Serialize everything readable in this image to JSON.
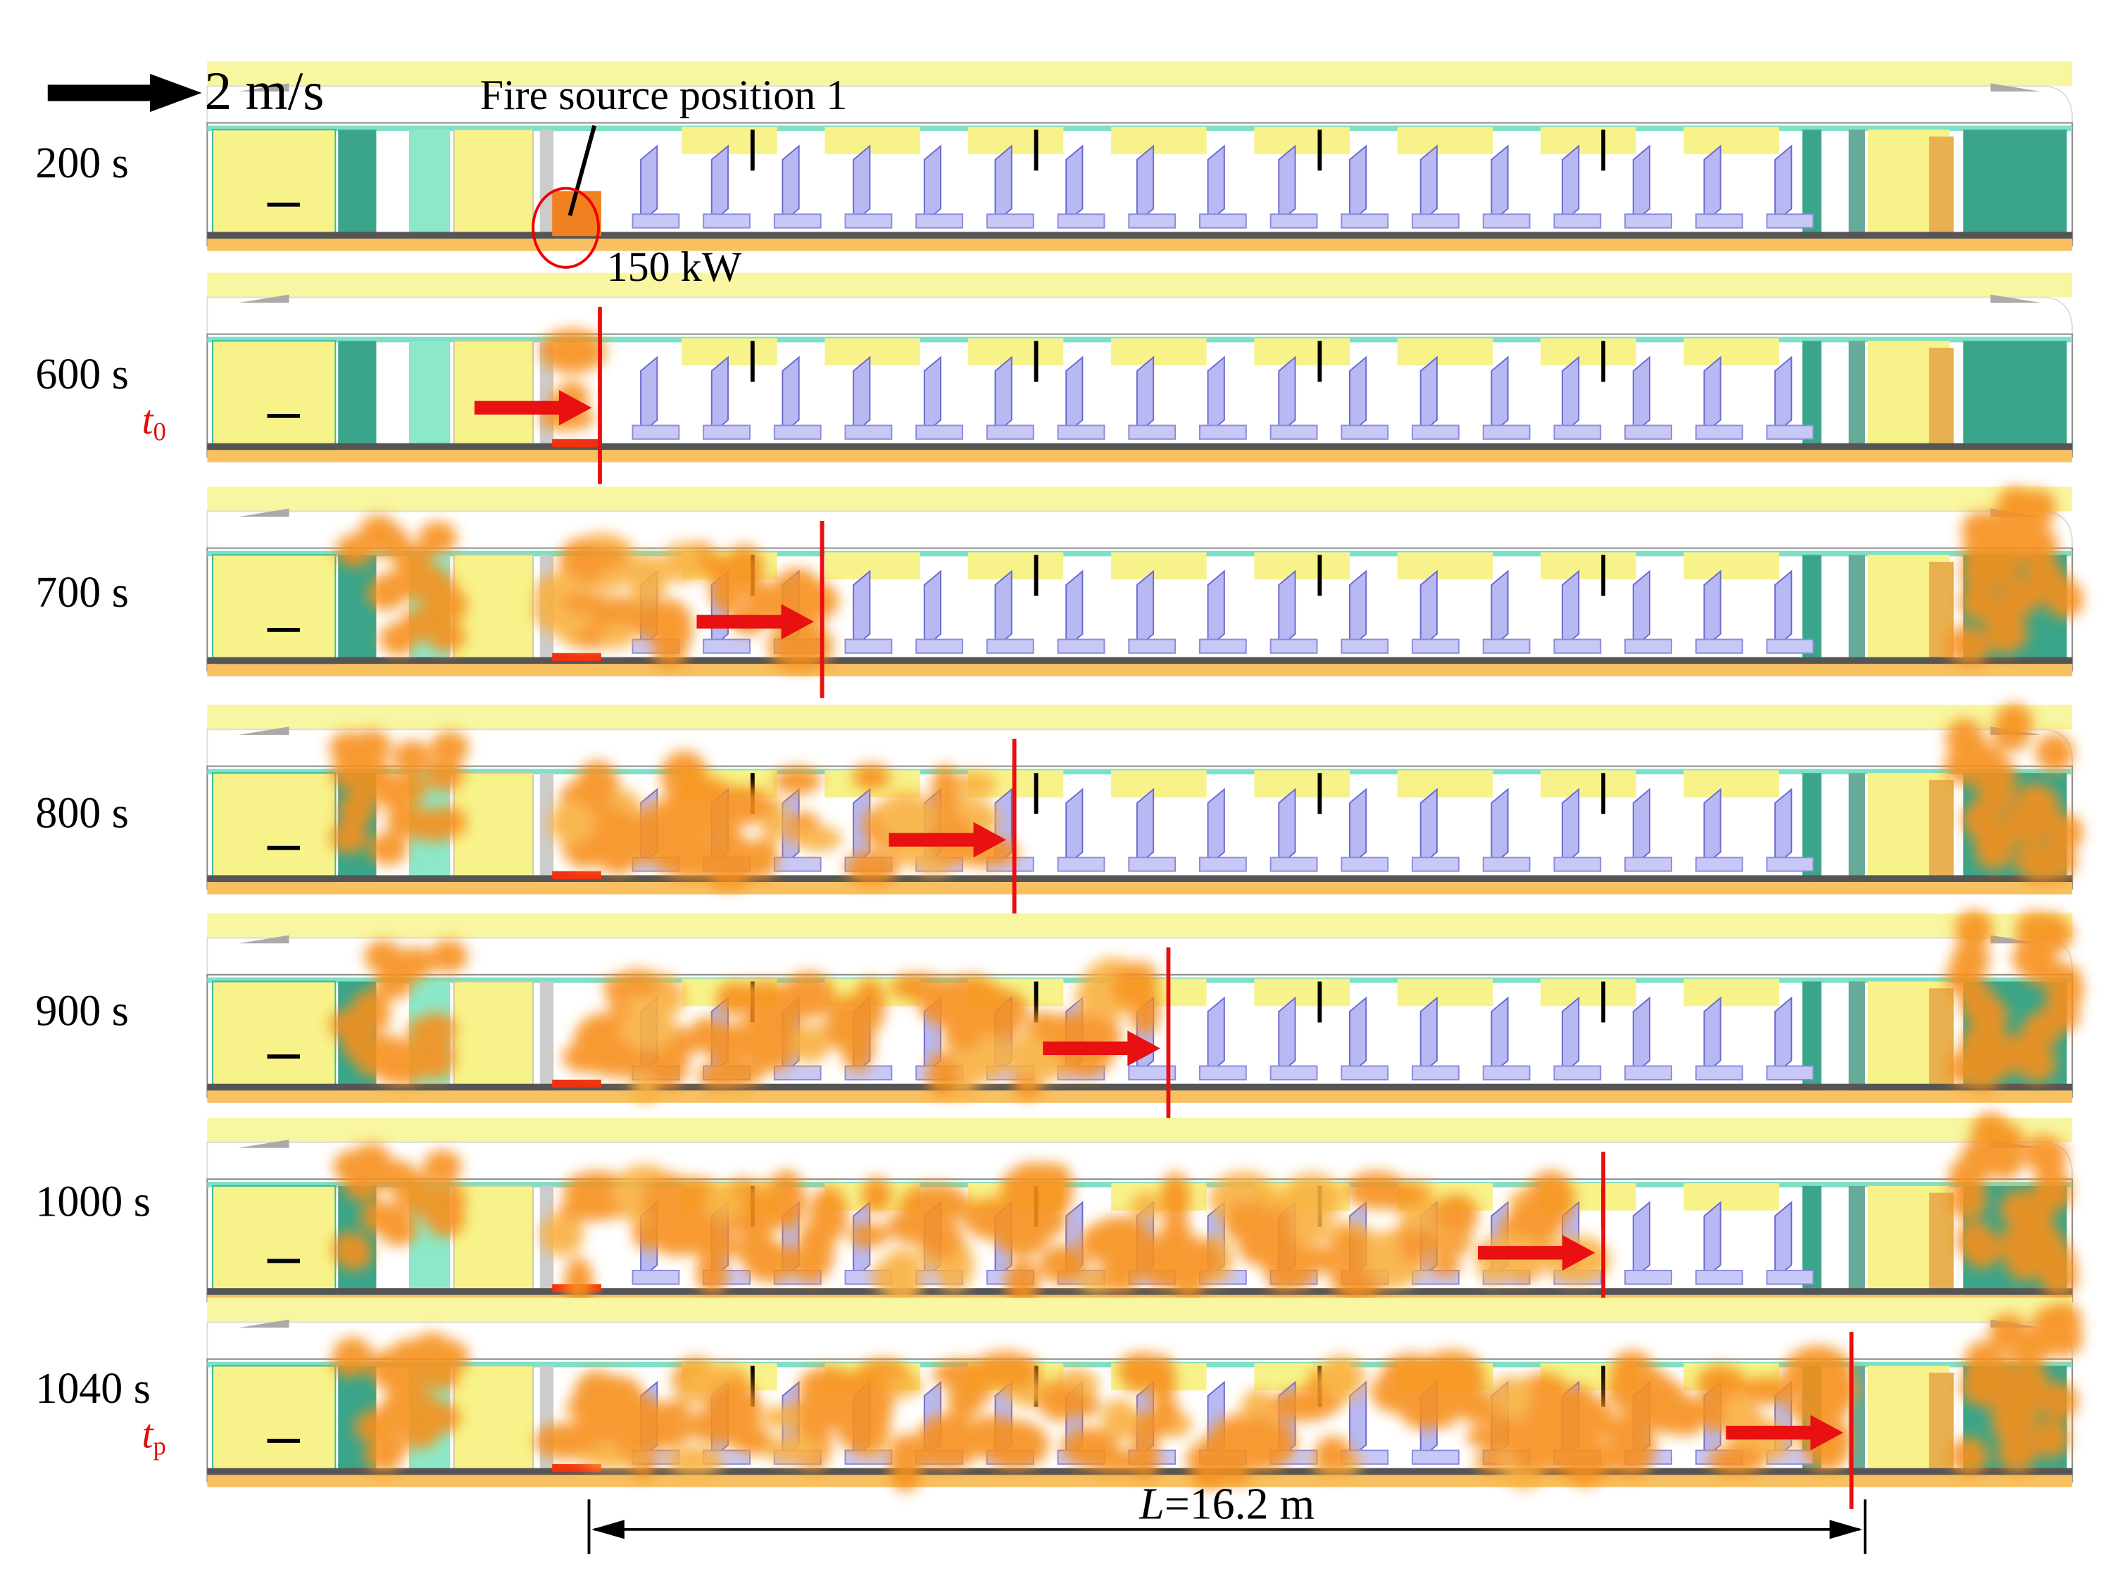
{
  "header": {
    "wind_label": "2 m/s",
    "fire_label": "Fire source position 1",
    "power_label": "150 kW"
  },
  "panels": [
    {
      "time": "200 s"
    },
    {
      "time": "600 s",
      "marker": {
        "symbol": "t",
        "subscript": "0"
      }
    },
    {
      "time": "700 s"
    },
    {
      "time": "800 s"
    },
    {
      "time": "900 s"
    },
    {
      "time": "1000 s"
    },
    {
      "time": "1040 s",
      "marker": {
        "symbol": "t",
        "subscript": "p"
      }
    }
  ],
  "dimension": {
    "symbol": "L",
    "text": "=16.2 m"
  }
}
